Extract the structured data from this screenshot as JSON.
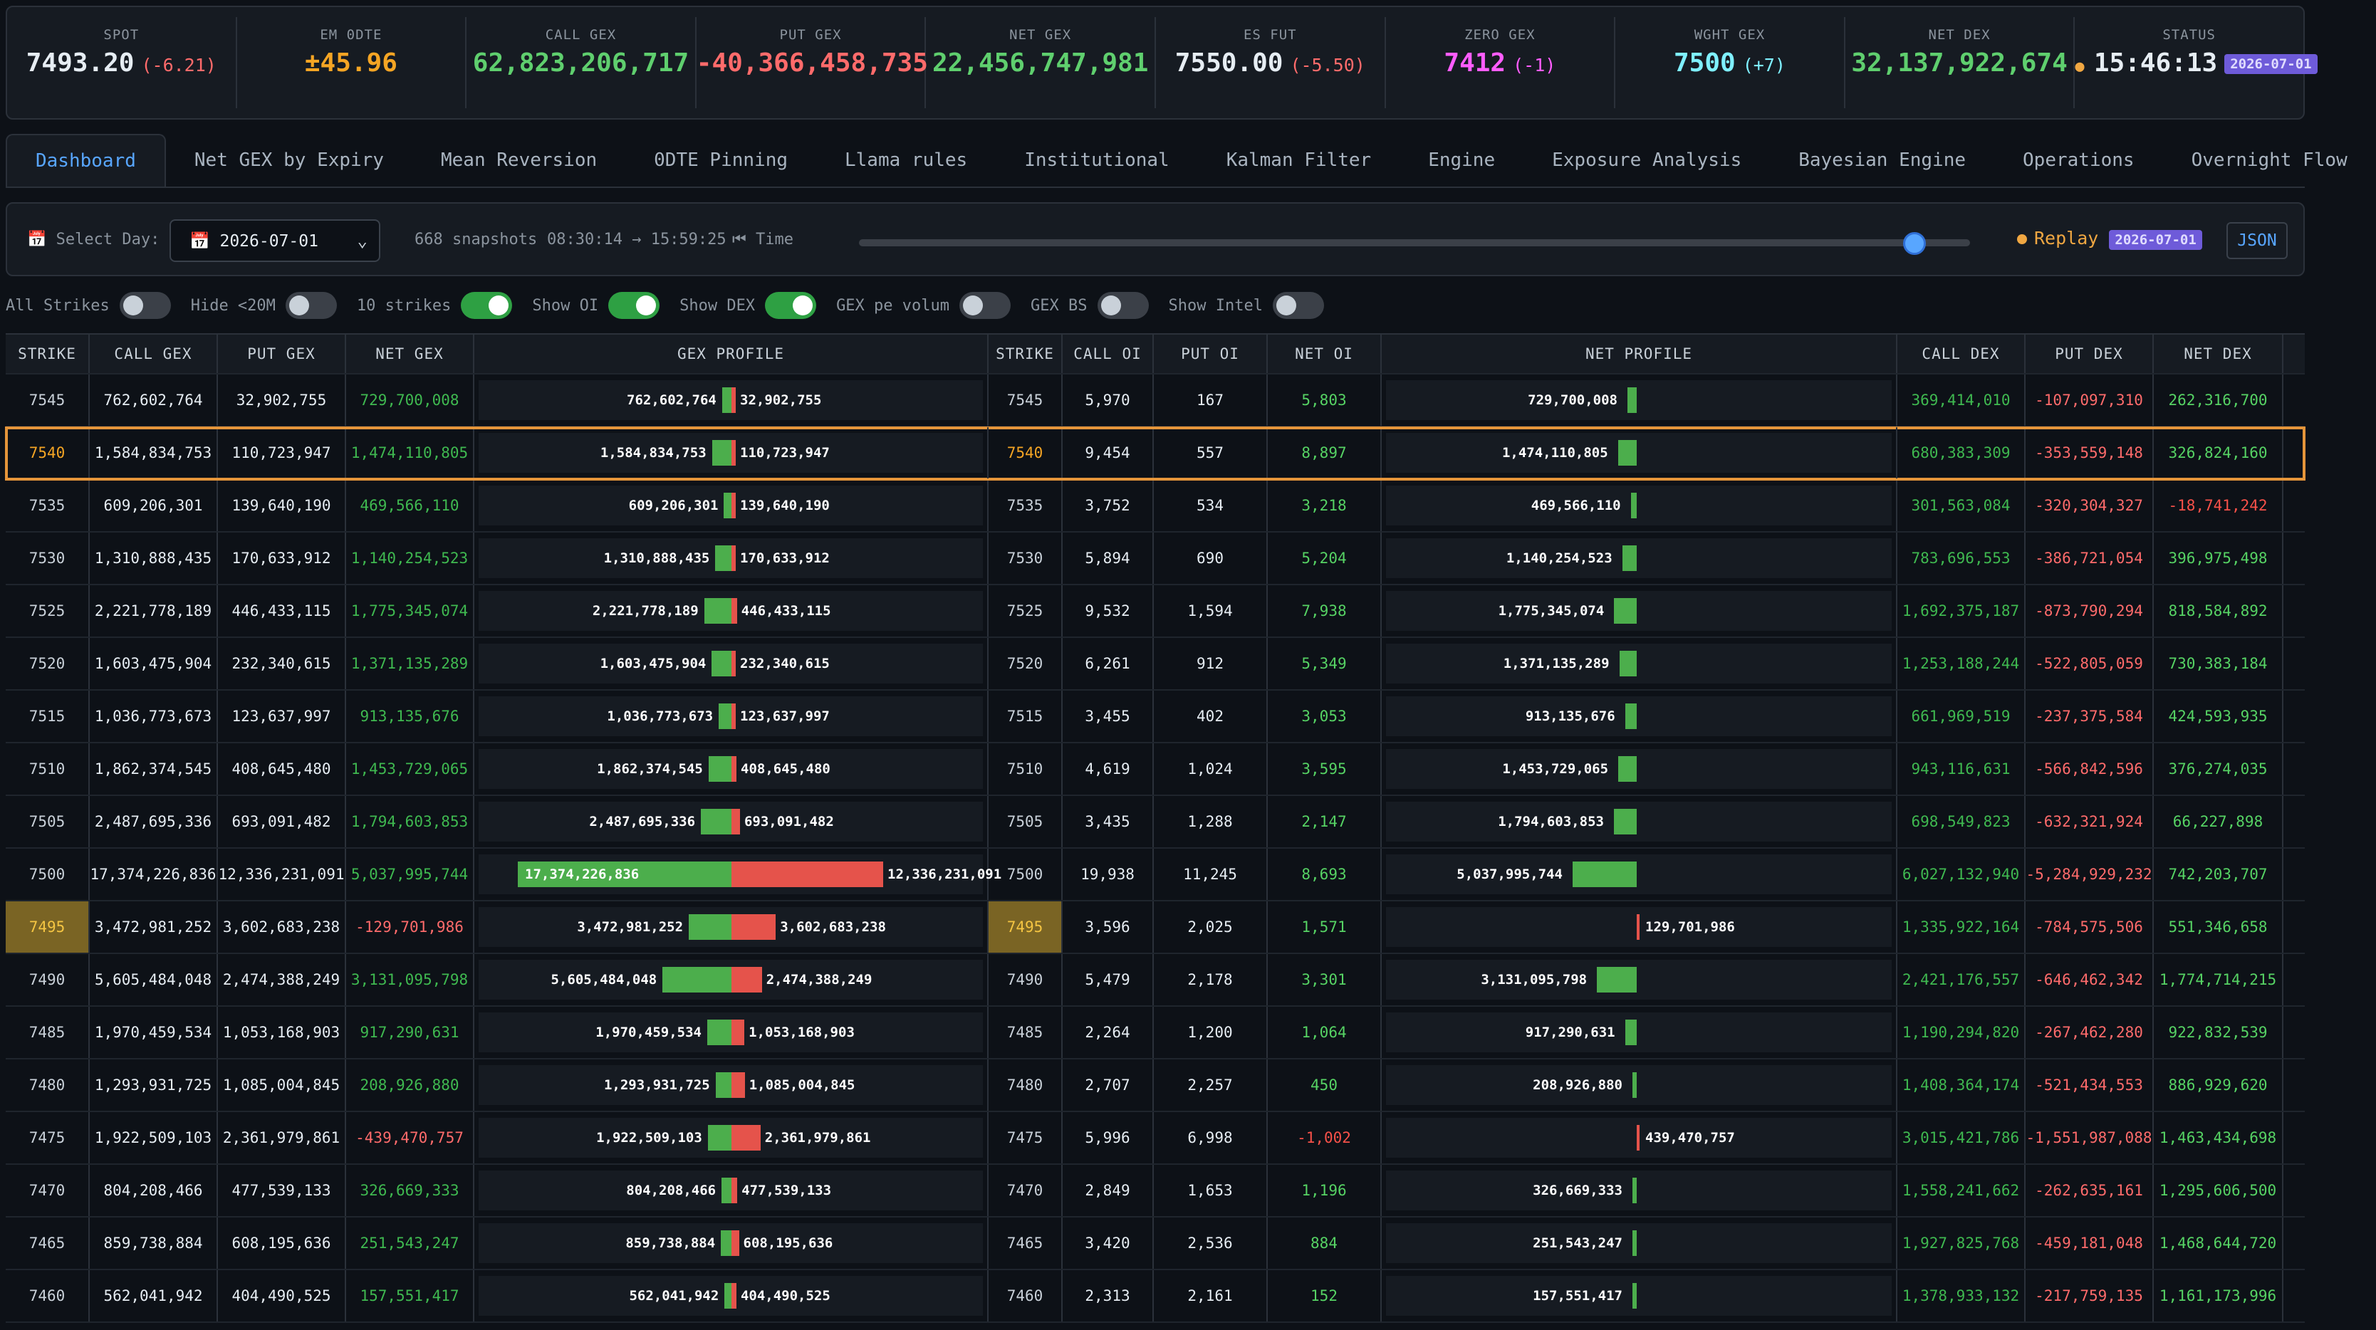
{
  "header": [
    {
      "label": "SPOT",
      "value": "7493.20",
      "change": "(-6.21)",
      "vcls": "w",
      "ccls": "r"
    },
    {
      "label": "EM 0DTE",
      "value": "±45.96",
      "change": "",
      "vcls": "orn",
      "ccls": ""
    },
    {
      "label": "CALL GEX",
      "value": "62,823,206,717",
      "change": "",
      "vcls": "g",
      "ccls": ""
    },
    {
      "label": "PUT GEX",
      "value": "-40,366,458,735",
      "change": "",
      "vcls": "r",
      "ccls": ""
    },
    {
      "label": "NET GEX",
      "value": "22,456,747,981",
      "change": "",
      "vcls": "g",
      "ccls": ""
    },
    {
      "label": "ES FUT",
      "value": "7550.00",
      "change": "(-5.50)",
      "vcls": "w",
      "ccls": "r"
    },
    {
      "label": "ZERO GEX",
      "value": "7412",
      "change": "(-1)",
      "vcls": "m",
      "ccls": "m"
    },
    {
      "label": "WGHT GEX",
      "value": "7500",
      "change": "(+7)",
      "vcls": "c",
      "ccls": "c"
    },
    {
      "label": "NET DEX",
      "value": "32,137,922,674",
      "change": "",
      "vcls": "g",
      "ccls": ""
    },
    {
      "label": "STATUS",
      "value": "15:46:13",
      "change": "2026-07-01",
      "vcls": "w",
      "ccls": "badge"
    }
  ],
  "tabs": [
    "Dashboard",
    "Net GEX by Expiry",
    "Mean Reversion",
    "0DTE Pinning",
    "Llama rules",
    "Institutional",
    "Kalman Filter",
    "Engine",
    "Exposure Analysis",
    "Bayesian Engine",
    "Operations",
    "Overnight Flow"
  ],
  "controls": {
    "select_day_label": "📅 Select Day:",
    "day_value": "📅 2026-07-01",
    "snapshots": "668  snapshots",
    "time_range": "08:30:14 → 15:59:25",
    "time_label": "⏮ Time",
    "replay_label": "Replay",
    "replay_date": "2026-07-01",
    "json_label": "JSON",
    "slider_fraction": 0.95
  },
  "toggles": [
    {
      "label": "All Strikes",
      "on": false
    },
    {
      "label": "Hide <20M",
      "on": false
    },
    {
      "label": "10 strikes",
      "on": true
    },
    {
      "label": "Show OI",
      "on": true
    },
    {
      "label": "Show DEX",
      "on": true
    },
    {
      "label": "GEX pe volum",
      "on": false
    },
    {
      "label": "GEX BS",
      "on": false
    },
    {
      "label": "Show Intel",
      "on": false
    }
  ],
  "columns": [
    "STRIKE",
    "CALL GEX",
    "PUT GEX",
    "NET GEX",
    "GEX PROFILE",
    "STRIKE",
    "CALL OI",
    "PUT OI",
    "NET OI",
    "NET PROFILE",
    "CALL DEX",
    "PUT DEX",
    "NET DEX"
  ],
  "rows": [
    [
      "7545",
      "762,602,764",
      "32,902,755",
      "729,700,008",
      "5,970",
      "167",
      "5,803",
      "369,414,010",
      "-107,097,310",
      "262,316,700"
    ],
    [
      "7540",
      "1,584,834,753",
      "110,723,947",
      "1,474,110,805",
      "9,454",
      "557",
      "8,897",
      "680,383,309",
      "-353,559,148",
      "326,824,160"
    ],
    [
      "7535",
      "609,206,301",
      "139,640,190",
      "469,566,110",
      "3,752",
      "534",
      "3,218",
      "301,563,084",
      "-320,304,327",
      "-18,741,242"
    ],
    [
      "7530",
      "1,310,888,435",
      "170,633,912",
      "1,140,254,523",
      "5,894",
      "690",
      "5,204",
      "783,696,553",
      "-386,721,054",
      "396,975,498"
    ],
    [
      "7525",
      "2,221,778,189",
      "446,433,115",
      "1,775,345,074",
      "9,532",
      "1,594",
      "7,938",
      "1,692,375,187",
      "-873,790,294",
      "818,584,892"
    ],
    [
      "7520",
      "1,603,475,904",
      "232,340,615",
      "1,371,135,289",
      "6,261",
      "912",
      "5,349",
      "1,253,188,244",
      "-522,805,059",
      "730,383,184"
    ],
    [
      "7515",
      "1,036,773,673",
      "123,637,997",
      "913,135,676",
      "3,455",
      "402",
      "3,053",
      "661,969,519",
      "-237,375,584",
      "424,593,935"
    ],
    [
      "7510",
      "1,862,374,545",
      "408,645,480",
      "1,453,729,065",
      "4,619",
      "1,024",
      "3,595",
      "943,116,631",
      "-566,842,596",
      "376,274,035"
    ],
    [
      "7505",
      "2,487,695,336",
      "693,091,482",
      "1,794,603,853",
      "3,435",
      "1,288",
      "2,147",
      "698,549,823",
      "-632,321,924",
      "66,227,898"
    ],
    [
      "7500",
      "17,374,226,836",
      "12,336,231,091",
      "5,037,995,744",
      "19,938",
      "11,245",
      "8,693",
      "6,027,132,940",
      "-5,284,929,232",
      "742,203,707"
    ],
    [
      "7495",
      "3,472,981,252",
      "3,602,683,238",
      "-129,701,986",
      "3,596",
      "2,025",
      "1,571",
      "1,335,922,164",
      "-784,575,506",
      "551,346,658"
    ],
    [
      "7490",
      "5,605,484,048",
      "2,474,388,249",
      "3,131,095,798",
      "5,479",
      "2,178",
      "3,301",
      "2,421,176,557",
      "-646,462,342",
      "1,774,714,215"
    ],
    [
      "7485",
      "1,970,459,534",
      "1,053,168,903",
      "917,290,631",
      "2,264",
      "1,200",
      "1,064",
      "1,190,294,820",
      "-267,462,280",
      "922,832,539"
    ],
    [
      "7480",
      "1,293,931,725",
      "1,085,004,845",
      "208,926,880",
      "2,707",
      "2,257",
      "450",
      "1,408,364,174",
      "-521,434,553",
      "886,929,620"
    ],
    [
      "7475",
      "1,922,509,103",
      "2,361,979,861",
      "-439,470,757",
      "5,996",
      "6,998",
      "-1,002",
      "3,015,421,786",
      "-1,551,987,088",
      "1,463,434,698"
    ],
    [
      "7470",
      "804,208,466",
      "477,539,133",
      "326,669,333",
      "2,849",
      "1,653",
      "1,196",
      "1,558,241,662",
      "-262,635,161",
      "1,295,606,500"
    ],
    [
      "7465",
      "859,738,884",
      "608,195,636",
      "251,543,247",
      "3,420",
      "2,536",
      "884",
      "1,927,825,768",
      "-459,181,048",
      "1,468,644,720"
    ],
    [
      "7460",
      "562,041,942",
      "404,490,525",
      "157,551,417",
      "2,313",
      "2,161",
      "152",
      "1,378,933,132",
      "-217,759,135",
      "1,161,173,996"
    ]
  ],
  "highlight_strike": "7540",
  "spot_strike": "7495",
  "profile_net_display": [
    "729,700,008",
    "1,474,110,805",
    "469,566,110",
    "1,140,254,523",
    "1,775,345,074",
    "1,371,135,289",
    "913,135,676",
    "1,453,729,065",
    "1,794,603,853",
    "5,037,995,744",
    "129,701,986",
    "3,131,095,798",
    "917,290,631",
    "208,926,880",
    "439,470,757",
    "326,669,333",
    "251,543,247",
    "157,551,417"
  ]
}
